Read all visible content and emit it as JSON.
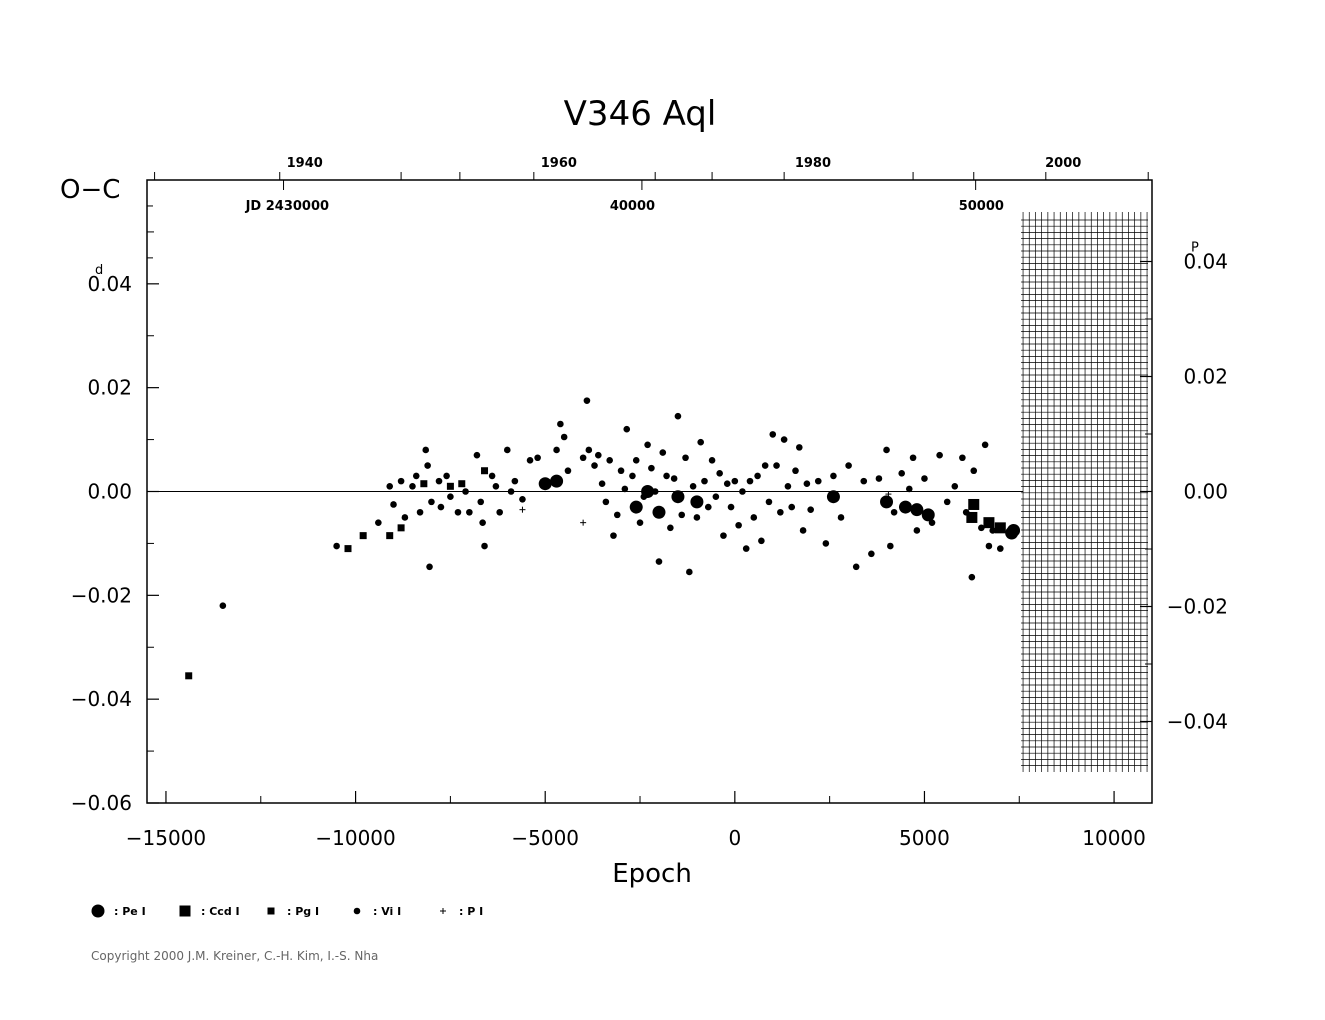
{
  "chart_data": {
    "type": "scatter",
    "title": "V346  Aql",
    "ylabel": "O−C",
    "xlabel": "Epoch",
    "xlim": [
      -15500,
      11000
    ],
    "ylim": [
      -0.06,
      0.06
    ],
    "x_ticks": [
      "−15000",
      "−10000",
      "−5000",
      "0",
      "5000",
      "10000"
    ],
    "x_tick_values": [
      -15000,
      -10000,
      -5000,
      0,
      5000,
      10000
    ],
    "y_ticks_left": [
      "0.04",
      "0.02",
      "0.00",
      "−0.02",
      "−0.04",
      "−0.06"
    ],
    "y_tick_values_left": [
      0.04,
      0.02,
      0.0,
      -0.02,
      -0.04,
      -0.06
    ],
    "y_unit_left": "d",
    "y_ticks_right": [
      "0.04",
      "0.02",
      "0.00",
      "−0.02",
      "−0.04"
    ],
    "y_unit_right": "P",
    "top_year_ticks": [
      "1940",
      "1960",
      "1980",
      "2000"
    ],
    "top_year_epochs": [
      -12000,
      -5300,
      1400,
      8000
    ],
    "top_jd_labels": [
      "JD  2430000",
      "40000",
      "50000"
    ],
    "top_jd_epochs": [
      -11800,
      -2700,
      6500
    ],
    "grid_region_epoch": [
      7600,
      11000
    ],
    "legend": [
      {
        "symbol": "circle-large",
        "label": ": Pe  I"
      },
      {
        "symbol": "square-large",
        "label": ": Ccd  I"
      },
      {
        "symbol": "square-small",
        "label": ": Pg  I"
      },
      {
        "symbol": "circle-small",
        "label": ": Vi  I"
      },
      {
        "symbol": "plus",
        "label": ": P  I"
      }
    ],
    "series": [
      {
        "name": "Pe  I",
        "symbol": "circle-large",
        "points": [
          [
            -5000,
            0.0015
          ],
          [
            -4700,
            0.002
          ],
          [
            -2600,
            -0.003
          ],
          [
            -2300,
            0.0
          ],
          [
            -2000,
            -0.004
          ],
          [
            -1500,
            -0.001
          ],
          [
            -1000,
            -0.002
          ],
          [
            2600,
            -0.001
          ],
          [
            4000,
            -0.002
          ],
          [
            4500,
            -0.003
          ],
          [
            4800,
            -0.0035
          ],
          [
            5100,
            -0.0045
          ],
          [
            7300,
            -0.008
          ],
          [
            7350,
            -0.0075
          ]
        ]
      },
      {
        "name": "Ccd  I",
        "symbol": "square-large",
        "points": [
          [
            6250,
            -0.005
          ],
          [
            6300,
            -0.0025
          ],
          [
            6700,
            -0.006
          ],
          [
            7000,
            -0.007
          ]
        ]
      },
      {
        "name": "Pg  I",
        "symbol": "square-small",
        "points": [
          [
            -14400,
            -0.0355
          ],
          [
            -10200,
            -0.011
          ],
          [
            -9800,
            -0.0085
          ],
          [
            -9100,
            -0.0085
          ],
          [
            -8800,
            -0.007
          ],
          [
            -8200,
            0.0015
          ],
          [
            -7500,
            0.001
          ],
          [
            -7200,
            0.0015
          ],
          [
            -6600,
            0.004
          ]
        ]
      },
      {
        "name": "Vi  I",
        "symbol": "circle-small",
        "points": [
          [
            -13500,
            -0.022
          ],
          [
            -10500,
            -0.0105
          ],
          [
            -9400,
            -0.006
          ],
          [
            -9100,
            0.001
          ],
          [
            -9000,
            -0.0025
          ],
          [
            -8800,
            0.002
          ],
          [
            -8700,
            -0.005
          ],
          [
            -8500,
            0.001
          ],
          [
            -8400,
            0.003
          ],
          [
            -8300,
            -0.004
          ],
          [
            -8150,
            0.008
          ],
          [
            -8100,
            0.005
          ],
          [
            -8000,
            -0.002
          ],
          [
            -8050,
            -0.0145
          ],
          [
            -7800,
            0.002
          ],
          [
            -7750,
            -0.003
          ],
          [
            -7600,
            0.003
          ],
          [
            -7500,
            -0.001
          ],
          [
            -7300,
            -0.004
          ],
          [
            -7100,
            0.0
          ],
          [
            -7000,
            -0.004
          ],
          [
            -6800,
            0.007
          ],
          [
            -6700,
            -0.002
          ],
          [
            -6650,
            -0.006
          ],
          [
            -6600,
            -0.0105
          ],
          [
            -6400,
            0.003
          ],
          [
            -6300,
            0.001
          ],
          [
            -6200,
            -0.004
          ],
          [
            -6000,
            0.008
          ],
          [
            -5900,
            0.0
          ],
          [
            -5800,
            0.002
          ],
          [
            -5600,
            -0.0015
          ],
          [
            -5400,
            0.006
          ],
          [
            -5200,
            0.0065
          ],
          [
            -4700,
            0.008
          ],
          [
            -4600,
            0.013
          ],
          [
            -4500,
            0.0105
          ],
          [
            -4400,
            0.004
          ],
          [
            -4000,
            0.0065
          ],
          [
            -3900,
            0.0175
          ],
          [
            -3850,
            0.008
          ],
          [
            -3700,
            0.005
          ],
          [
            -3600,
            0.007
          ],
          [
            -3500,
            0.0015
          ],
          [
            -3400,
            -0.002
          ],
          [
            -3300,
            0.006
          ],
          [
            -3200,
            -0.0085
          ],
          [
            -3100,
            -0.0045
          ],
          [
            -3000,
            0.004
          ],
          [
            -2900,
            0.0005
          ],
          [
            -2850,
            0.012
          ],
          [
            -2700,
            0.003
          ],
          [
            -2600,
            0.006
          ],
          [
            -2500,
            -0.006
          ],
          [
            -2400,
            -0.001
          ],
          [
            -2300,
            0.009
          ],
          [
            -2200,
            0.0045
          ],
          [
            -2100,
            0.0
          ],
          [
            -2000,
            -0.0135
          ],
          [
            -1900,
            0.0075
          ],
          [
            -1800,
            0.003
          ],
          [
            -1700,
            -0.007
          ],
          [
            -1600,
            0.0025
          ],
          [
            -1500,
            0.0145
          ],
          [
            -1400,
            -0.0045
          ],
          [
            -1300,
            0.0065
          ],
          [
            -1200,
            -0.0155
          ],
          [
            -1100,
            0.001
          ],
          [
            -1000,
            -0.005
          ],
          [
            -900,
            0.0095
          ],
          [
            -800,
            0.002
          ],
          [
            -700,
            -0.003
          ],
          [
            -600,
            0.006
          ],
          [
            -500,
            -0.001
          ],
          [
            -400,
            0.0035
          ],
          [
            -300,
            -0.0085
          ],
          [
            -200,
            0.0015
          ],
          [
            -100,
            -0.003
          ],
          [
            0,
            0.002
          ],
          [
            100,
            -0.0065
          ],
          [
            200,
            0.0
          ],
          [
            300,
            -0.011
          ],
          [
            400,
            0.002
          ],
          [
            500,
            -0.005
          ],
          [
            600,
            0.003
          ],
          [
            700,
            -0.0095
          ],
          [
            800,
            0.005
          ],
          [
            900,
            -0.002
          ],
          [
            1000,
            0.011
          ],
          [
            1100,
            0.005
          ],
          [
            1200,
            -0.004
          ],
          [
            1300,
            0.01
          ],
          [
            1400,
            0.001
          ],
          [
            1500,
            -0.003
          ],
          [
            1600,
            0.004
          ],
          [
            1700,
            0.0085
          ],
          [
            1800,
            -0.0075
          ],
          [
            1900,
            0.0015
          ],
          [
            2000,
            -0.0035
          ],
          [
            2200,
            0.002
          ],
          [
            2400,
            -0.01
          ],
          [
            2600,
            0.003
          ],
          [
            2800,
            -0.005
          ],
          [
            3000,
            0.005
          ],
          [
            3200,
            -0.0145
          ],
          [
            3400,
            0.002
          ],
          [
            3600,
            -0.012
          ],
          [
            3800,
            0.0025
          ],
          [
            4000,
            0.008
          ],
          [
            4100,
            -0.0105
          ],
          [
            4200,
            -0.004
          ],
          [
            4400,
            0.0035
          ],
          [
            4600,
            0.0005
          ],
          [
            4700,
            0.0065
          ],
          [
            4800,
            -0.0075
          ],
          [
            5000,
            0.0025
          ],
          [
            5200,
            -0.006
          ],
          [
            5400,
            0.007
          ],
          [
            5600,
            -0.002
          ],
          [
            5800,
            0.001
          ],
          [
            6000,
            0.0065
          ],
          [
            6100,
            -0.004
          ],
          [
            6250,
            -0.0165
          ],
          [
            6300,
            0.004
          ],
          [
            6500,
            -0.007
          ],
          [
            6600,
            0.009
          ],
          [
            6700,
            -0.0105
          ],
          [
            6800,
            -0.0075
          ],
          [
            7000,
            -0.011
          ]
        ]
      },
      {
        "name": "P  I",
        "symbol": "plus",
        "points": [
          [
            -5600,
            -0.0035
          ],
          [
            -4000,
            -0.006
          ],
          [
            4050,
            -0.0005
          ]
        ]
      }
    ]
  },
  "copyright": "Copyright 2000 J.M. Kreiner, C.-H. Kim, I.-S. Nha"
}
